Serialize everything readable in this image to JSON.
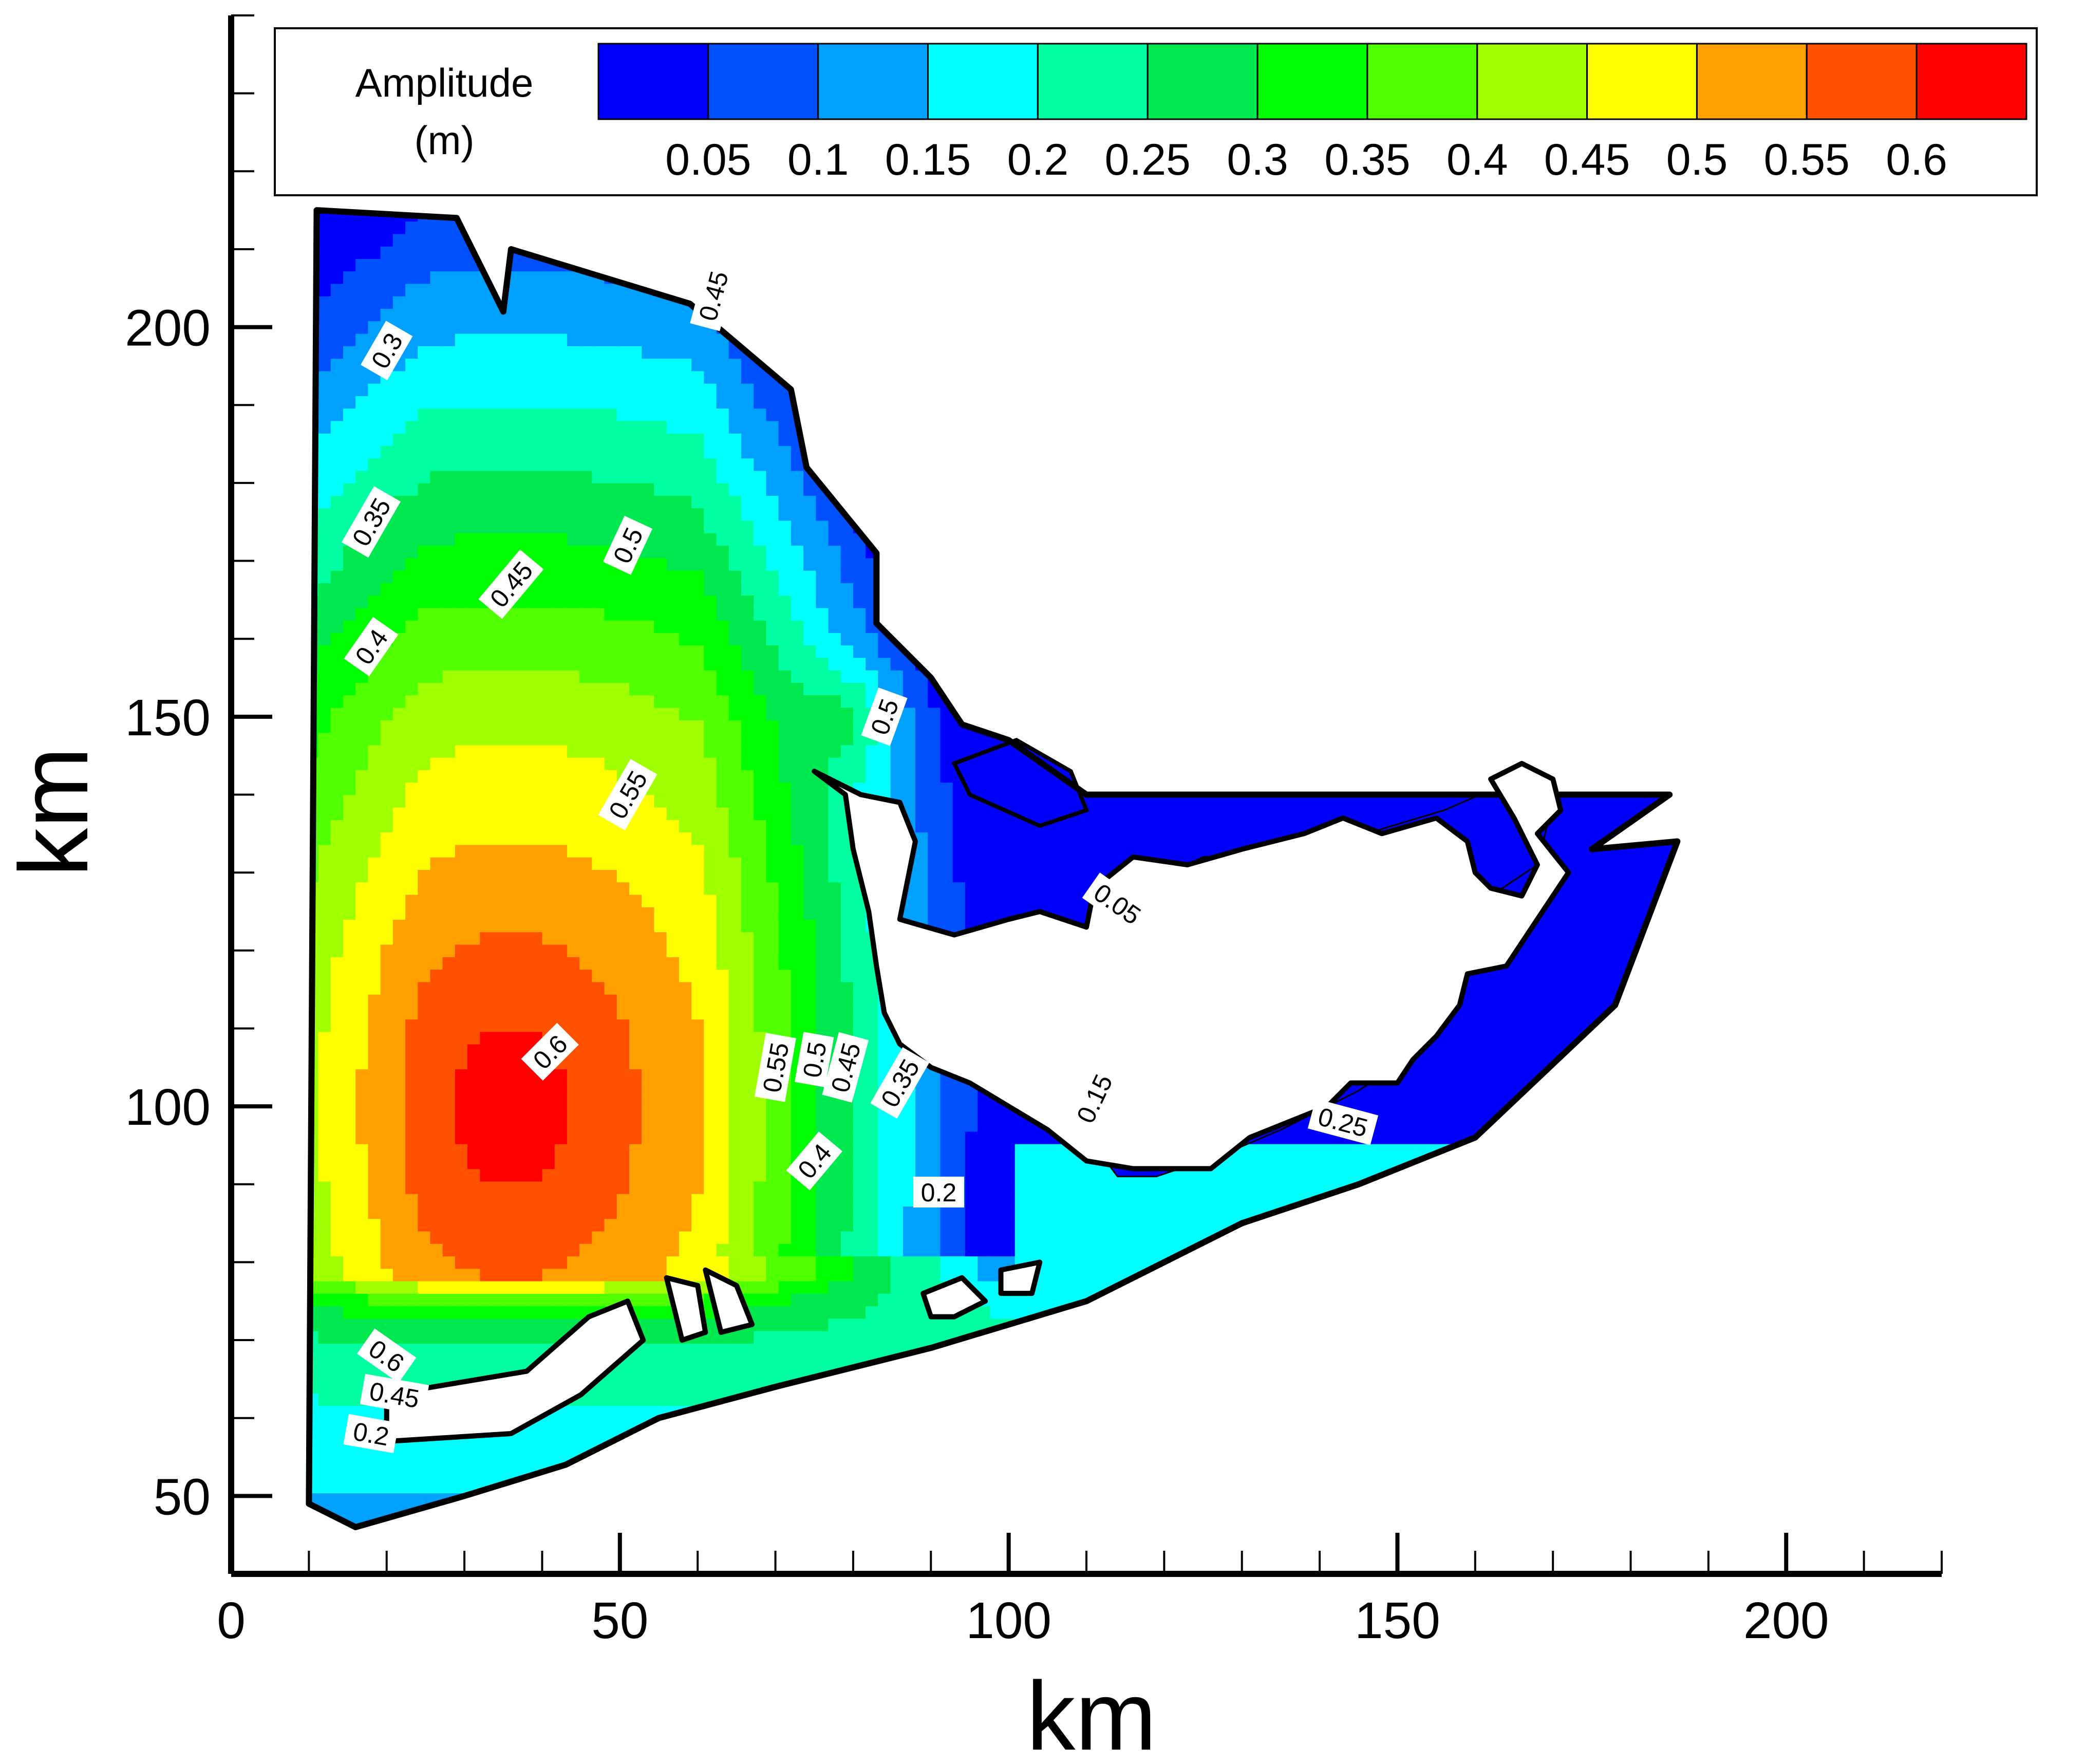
{
  "chart_data": {
    "type": "heatmap",
    "subtype": "filled-contour-map",
    "title": "",
    "xlabel": "km",
    "ylabel": "km",
    "xlim": [
      0,
      220
    ],
    "ylim": [
      40,
      240
    ],
    "x_ticks": [
      0,
      50,
      100,
      150,
      200
    ],
    "y_ticks": [
      50,
      100,
      150,
      200
    ],
    "x_tick_labels": [
      "0",
      "50",
      "100",
      "150",
      "200"
    ],
    "y_tick_labels": [
      "50",
      "100",
      "150",
      "200"
    ],
    "grid": false,
    "legend": {
      "placement": "top",
      "title_line1": "Amplitude",
      "title_line2": "(m)",
      "levels": [
        0.05,
        0.1,
        0.15,
        0.2,
        0.25,
        0.3,
        0.35,
        0.4,
        0.45,
        0.5,
        0.55,
        0.6
      ],
      "level_labels": [
        "0.05",
        "0.1",
        "0.15",
        "0.2",
        "0.25",
        "0.3",
        "0.35",
        "0.4",
        "0.45",
        "0.5",
        "0.55",
        "0.6"
      ],
      "colors": [
        "#0000ff",
        "#0050ff",
        "#00a0ff",
        "#00ffff",
        "#00ffa0",
        "#00e850",
        "#00ff00",
        "#50ff00",
        "#a0ff00",
        "#ffff00",
        "#ffa000",
        "#ff5000",
        "#ff0000"
      ]
    },
    "domain_boundary": [
      [
        11,
        215
      ],
      [
        29,
        214
      ],
      [
        35,
        202
      ],
      [
        36,
        210
      ],
      [
        59,
        203
      ],
      [
        72,
        192
      ],
      [
        74,
        182
      ],
      [
        83,
        171
      ],
      [
        83,
        162
      ],
      [
        90,
        155
      ],
      [
        94,
        149
      ],
      [
        100,
        147
      ],
      [
        110,
        140
      ],
      [
        185,
        140
      ],
      [
        175,
        133
      ],
      [
        186,
        134
      ],
      [
        178,
        113
      ],
      [
        160,
        96
      ],
      [
        145,
        90
      ],
      [
        130,
        85
      ],
      [
        110,
        75
      ],
      [
        90,
        69
      ],
      [
        70,
        64
      ],
      [
        55,
        60
      ],
      [
        43,
        54
      ],
      [
        30,
        50
      ],
      [
        16,
        46
      ],
      [
        10,
        49
      ]
    ],
    "islands": [
      [
        [
          75,
          143
        ],
        [
          81,
          140
        ],
        [
          86,
          139
        ],
        [
          88,
          134
        ],
        [
          86,
          124
        ],
        [
          93,
          122
        ],
        [
          100,
          124
        ],
        [
          104,
          125
        ],
        [
          110,
          123
        ],
        [
          111,
          128
        ],
        [
          116,
          132
        ],
        [
          123,
          131
        ],
        [
          130,
          133
        ],
        [
          138,
          135
        ],
        [
          143,
          137
        ],
        [
          148,
          135
        ],
        [
          155,
          137
        ],
        [
          159,
          134
        ],
        [
          160,
          130
        ],
        [
          162,
          128
        ],
        [
          166,
          127
        ],
        [
          168,
          131
        ],
        [
          165,
          137
        ],
        [
          162,
          142
        ],
        [
          164,
          143
        ],
        [
          166,
          144
        ],
        [
          170,
          142
        ],
        [
          171,
          138
        ],
        [
          168,
          135
        ],
        [
          172,
          130
        ],
        [
          168,
          124
        ],
        [
          164,
          118
        ],
        [
          159,
          117
        ],
        [
          158,
          113
        ],
        [
          155,
          109
        ],
        [
          152,
          106
        ],
        [
          150,
          103
        ],
        [
          144,
          103
        ],
        [
          141,
          100
        ],
        [
          136,
          98
        ],
        [
          131,
          96
        ],
        [
          126,
          92
        ],
        [
          116,
          92
        ],
        [
          110,
          93
        ],
        [
          105,
          97
        ],
        [
          100,
          100
        ],
        [
          95,
          103
        ],
        [
          90,
          105
        ],
        [
          86,
          108
        ],
        [
          84,
          112
        ],
        [
          83,
          118
        ],
        [
          82,
          125
        ],
        [
          80,
          133
        ],
        [
          79,
          140
        ]
      ],
      [
        [
          20,
          63
        ],
        [
          38,
          66
        ],
        [
          46,
          73
        ],
        [
          51,
          75
        ],
        [
          53,
          70
        ],
        [
          45,
          63
        ],
        [
          36,
          58
        ],
        [
          20,
          57
        ]
      ],
      [
        [
          56,
          78
        ],
        [
          60,
          77
        ],
        [
          61,
          71
        ],
        [
          58,
          70
        ]
      ],
      [
        [
          61,
          79
        ],
        [
          65,
          77
        ],
        [
          67,
          72
        ],
        [
          63,
          71
        ]
      ],
      [
        [
          89,
          76
        ],
        [
          94,
          78
        ],
        [
          97,
          75
        ],
        [
          93,
          73
        ],
        [
          90,
          73
        ]
      ],
      [
        [
          99,
          79
        ],
        [
          104,
          80
        ],
        [
          103,
          76
        ],
        [
          99,
          76
        ]
      ]
    ],
    "region_blue_north": [
      [
        93,
        144
      ],
      [
        101,
        147
      ],
      [
        108,
        143
      ],
      [
        110,
        138
      ],
      [
        104,
        136
      ],
      [
        95,
        140
      ]
    ],
    "region_blue_east": [
      [
        113,
        126
      ],
      [
        125,
        132
      ],
      [
        138,
        133
      ],
      [
        146,
        135
      ],
      [
        156,
        138
      ],
      [
        163,
        141
      ],
      [
        166,
        144
      ],
      [
        170,
        139
      ],
      [
        168,
        131
      ],
      [
        162,
        127
      ],
      [
        159,
        118
      ],
      [
        154,
        108
      ],
      [
        145,
        102
      ],
      [
        135,
        97
      ],
      [
        128,
        94
      ],
      [
        119,
        91
      ],
      [
        114,
        91
      ],
      [
        111,
        95
      ],
      [
        112,
        105
      ],
      [
        113,
        113
      ],
      [
        113,
        120
      ]
    ],
    "contour_label_values": [
      "0.3",
      "0.35",
      "0.45",
      "0.4",
      "0.5",
      "0.45",
      "0.5",
      "0.55",
      "0.6",
      "0.55",
      "0.5",
      "0.45",
      "0.35",
      "0.4",
      "0.2",
      "0.05",
      "0.15",
      "0.25",
      "0.6",
      "0.45",
      "0.2"
    ],
    "contour_label_positions": [
      [
        20,
        197
      ],
      [
        18,
        175
      ],
      [
        36,
        167
      ],
      [
        18,
        159
      ],
      [
        51,
        172
      ],
      [
        62,
        204
      ],
      [
        84,
        150
      ],
      [
        51,
        140
      ],
      [
        41,
        107
      ],
      [
        70,
        105
      ],
      [
        75,
        106
      ],
      [
        79,
        105
      ],
      [
        86,
        103
      ],
      [
        75,
        93
      ],
      [
        91,
        89
      ],
      [
        114,
        126
      ],
      [
        111,
        101
      ],
      [
        143,
        98
      ],
      [
        20,
        68
      ],
      [
        21,
        63
      ],
      [
        18,
        58
      ]
    ],
    "contour_label_angles": [
      -60,
      -60,
      -50,
      -55,
      -65,
      -75,
      -70,
      -60,
      -45,
      -80,
      -80,
      -75,
      -60,
      -50,
      0,
      35,
      -65,
      15,
      35,
      10,
      10
    ]
  }
}
